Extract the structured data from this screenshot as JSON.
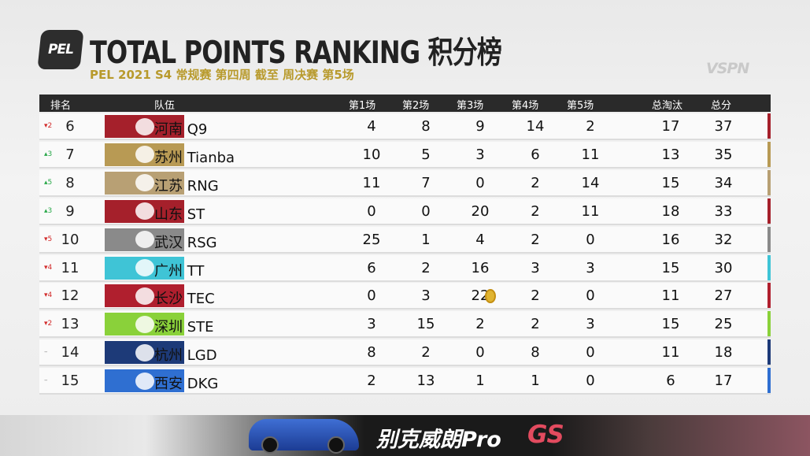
{
  "header": {
    "logo_text": "PEL",
    "title": "TOTAL POINTS RANKING 积分榜",
    "subtitle": "PEL 2021 S4 常规赛 第四周 截至 周决赛 第5场",
    "broadcaster": "VSPN"
  },
  "table": {
    "columns": [
      "排名",
      "队伍",
      "第1场",
      "第2场",
      "第3场",
      "第4场",
      "第5场",
      "总淘汰",
      "总分"
    ],
    "rows": [
      {
        "change": "▾2",
        "dir": "down",
        "rank": "6",
        "team": "河南 Q9",
        "m1": "4",
        "m2": "8",
        "m3": "9",
        "m4": "14",
        "m5": "2",
        "kills": "17",
        "total": "37",
        "badge_color": "#a5202b",
        "bar_color": "#a5202b"
      },
      {
        "change": "▴3",
        "dir": "up",
        "rank": "7",
        "team": "苏州 Tianba",
        "m1": "10",
        "m2": "5",
        "m3": "3",
        "m4": "6",
        "m5": "11",
        "kills": "13",
        "total": "35",
        "badge_color": "#b89a54",
        "bar_color": "#b89a54"
      },
      {
        "change": "▴5",
        "dir": "up",
        "rank": "8",
        "team": "江苏 RNG",
        "m1": "11",
        "m2": "7",
        "m3": "0",
        "m4": "2",
        "m5": "14",
        "kills": "15",
        "total": "34",
        "badge_color": "#b8a074",
        "bar_color": "#b8a074"
      },
      {
        "change": "▴3",
        "dir": "up",
        "rank": "9",
        "team": "山东 ST",
        "m1": "0",
        "m2": "0",
        "m3": "20",
        "m4": "2",
        "m5": "11",
        "kills": "18",
        "total": "33",
        "badge_color": "#a5202b",
        "bar_color": "#a5202b"
      },
      {
        "change": "▾5",
        "dir": "down",
        "rank": "10",
        "team": "武汉 RSG",
        "m1": "25",
        "m2": "1",
        "m3": "4",
        "m4": "2",
        "m5": "0",
        "kills": "16",
        "total": "32",
        "badge_color": "#8a8a8a",
        "bar_color": "#8a8a8a"
      },
      {
        "change": "▾4",
        "dir": "down",
        "rank": "11",
        "team": "广州 TT",
        "m1": "6",
        "m2": "2",
        "m3": "16",
        "m4": "3",
        "m5": "3",
        "kills": "15",
        "total": "30",
        "badge_color": "#3fc4d6",
        "bar_color": "#3fc4d6"
      },
      {
        "change": "▾4",
        "dir": "down",
        "rank": "12",
        "team": "长沙 TEC",
        "m1": "0",
        "m2": "3",
        "m3": "22",
        "m4": "2",
        "m5": "0",
        "kills": "11",
        "total": "27",
        "badge_color": "#b01f2e",
        "bar_color": "#b01f2e",
        "medal": true
      },
      {
        "change": "▾2",
        "dir": "down",
        "rank": "13",
        "team": "深圳 STE",
        "m1": "3",
        "m2": "15",
        "m3": "2",
        "m4": "2",
        "m5": "3",
        "kills": "15",
        "total": "25",
        "badge_color": "#8ad13a",
        "bar_color": "#8ad13a"
      },
      {
        "change": "–",
        "dir": "same",
        "rank": "14",
        "team": "杭州 LGD",
        "m1": "8",
        "m2": "2",
        "m3": "0",
        "m4": "8",
        "m5": "0",
        "kills": "11",
        "total": "18",
        "badge_color": "#1d3a78",
        "bar_color": "#1d3a78"
      },
      {
        "change": "–",
        "dir": "same",
        "rank": "15",
        "team": "西安 DKG",
        "m1": "2",
        "m2": "13",
        "m3": "1",
        "m4": "1",
        "m5": "0",
        "kills": "6",
        "total": "17",
        "badge_color": "#2f6fd1",
        "bar_color": "#2f6fd1"
      }
    ]
  },
  "sponsor": {
    "text": "别克威朗Pro",
    "suffix": "GS"
  }
}
